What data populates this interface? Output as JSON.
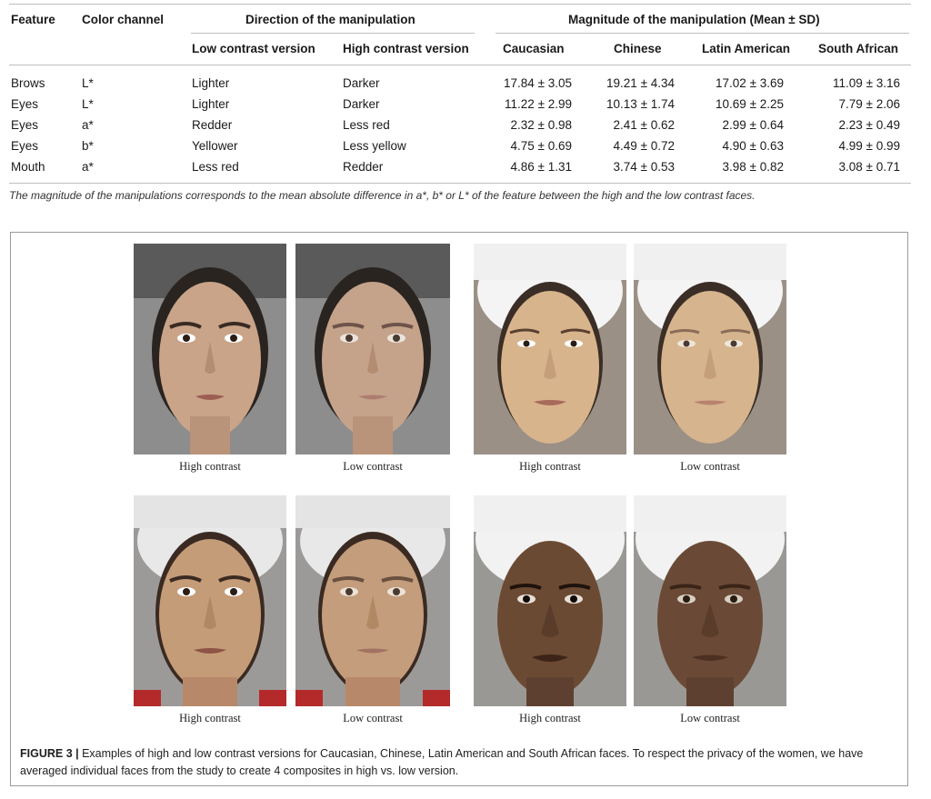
{
  "table": {
    "headers": {
      "feature": "Feature",
      "color_channel": "Color channel",
      "direction_group": "Direction of the manipulation",
      "low_version": "Low contrast version",
      "high_version": "High contrast version",
      "magnitude_group": "Magnitude of the manipulation (Mean ± SD)",
      "caucasian": "Caucasian",
      "chinese": "Chinese",
      "latin": "Latin American",
      "south_african": "South African"
    },
    "rows": [
      {
        "feature": "Brows",
        "channel": "L*",
        "low": "Lighter",
        "high": "Darker",
        "caucasian": "17.84 ± 3.05",
        "chinese": "19.21 ± 4.34",
        "latin": "17.02 ± 3.69",
        "south_african": "11.09 ± 3.16"
      },
      {
        "feature": "Eyes",
        "channel": "L*",
        "low": "Lighter",
        "high": "Darker",
        "caucasian": "11.22 ± 2.99",
        "chinese": "10.13 ± 1.74",
        "latin": "10.69 ± 2.25",
        "south_african": "7.79 ± 2.06"
      },
      {
        "feature": "Eyes",
        "channel": "a*",
        "low": "Redder",
        "high": "Less red",
        "caucasian": "2.32 ± 0.98",
        "chinese": "2.41 ± 0.62",
        "latin": "2.99 ± 0.64",
        "south_african": "2.23 ± 0.49"
      },
      {
        "feature": "Eyes",
        "channel": "b*",
        "low": "Yellower",
        "high": "Less yellow",
        "caucasian": "4.75 ± 0.69",
        "chinese": "4.49 ± 0.72",
        "latin": "4.90 ± 0.63",
        "south_african": "4.99 ± 0.99"
      },
      {
        "feature": "Mouth",
        "channel": "a*",
        "low": "Less red",
        "high": "Redder",
        "caucasian": "4.86 ± 1.31",
        "chinese": "3.74 ± 0.53",
        "latin": "3.98 ± 0.82",
        "south_african": "3.08 ± 0.71"
      }
    ],
    "footnote": "The magnitude of the manipulations corresponds to the mean absolute difference in a*, b* or L* of the feature between the high and the low contrast faces."
  },
  "figure": {
    "labels": {
      "caucasian_left": "High  contrast",
      "caucasian_right": "Low contrast",
      "chinese_left": "High  contrast",
      "chinese_right": "Low contrast",
      "latin_left": "High  contrast",
      "latin_right": "Low contrast",
      "african_left": "High  contrast",
      "african_right": "Low contrast"
    },
    "caption_label": "FIGURE 3 |",
    "caption_text": " Examples of high and low contrast versions for Caucasian, Chinese, Latin American and South African faces. To respect the privacy of the women, we have averaged individual faces from the study to create 4 composites in high vs. low version.",
    "colors": {
      "caucasian_skin": "#c9a489",
      "chinese_skin": "#d8b48c",
      "latin_skin": "#c59c78",
      "african_skin": "#6b4a34"
    }
  }
}
